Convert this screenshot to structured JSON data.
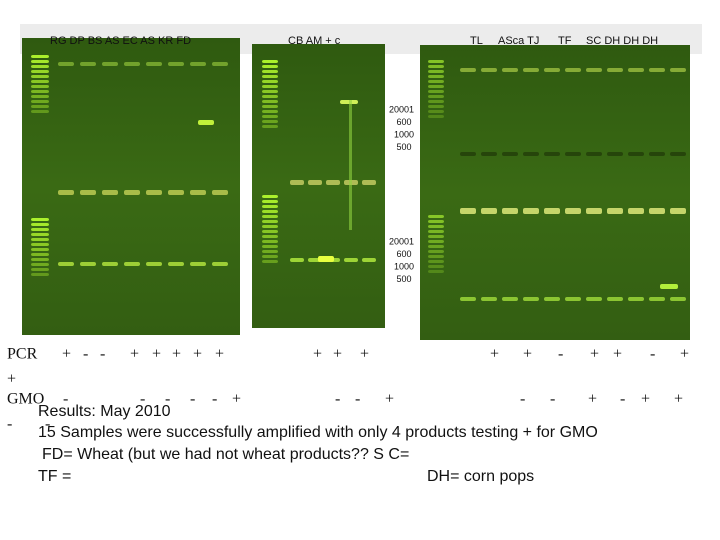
{
  "gel_labels": {
    "panel_1": "RG DP BS AS EC AS KR FD",
    "panel_2": "CB AM + c",
    "panel_3": [
      "TL",
      "ASca TJ",
      "TF",
      "SC DH DH DH"
    ]
  },
  "ladder_labels": {
    "upper": [
      "20001",
      "600",
      "1000",
      "500"
    ],
    "lower": [
      "20001",
      "600",
      "1000",
      "500"
    ]
  },
  "pcr_row": {
    "label": "PCR",
    "marks": [
      "+",
      "-",
      "-",
      "+",
      "+",
      "+",
      "+",
      "+",
      "+",
      "+",
      "+",
      "+",
      "+",
      "-",
      "+",
      "+",
      "-",
      "+"
    ],
    "wrap_mark": "+"
  },
  "gmo_row": {
    "label": "GMO",
    "marks": [
      "-",
      "-",
      "-",
      "-",
      "-",
      "+",
      "-",
      "-",
      "+",
      "-",
      "-",
      "+",
      "-",
      "+",
      "+"
    ],
    "wrap_marks": [
      "-",
      "-"
    ]
  },
  "results": {
    "title": "Results: May 2010",
    "lines": [
      "15 Samples were successfully amplified with only 4 products testing + for GMO",
      "FD= Wheat (but we had not wheat products??   S C=",
      "TF =",
      "DH= corn pops"
    ]
  }
}
